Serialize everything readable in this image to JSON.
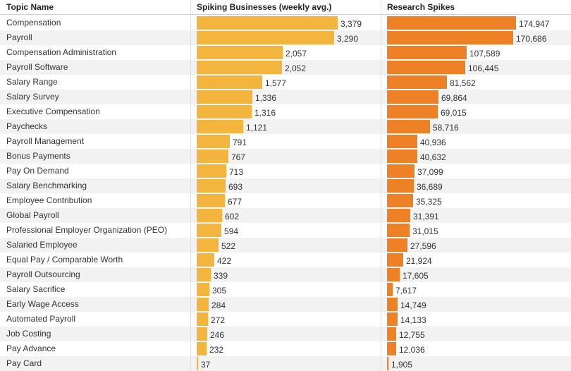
{
  "headers": {
    "topic": "Topic Name",
    "businesses": "Spiking Businesses (weekly avg.)",
    "research": "Research Spikes"
  },
  "colors": {
    "businesses_bar": "#f4b53f",
    "research_bar": "#ee8126",
    "row_alt": "#f2f2f2"
  },
  "chart_data": {
    "type": "table",
    "columns": [
      "Topic Name",
      "Spiking Businesses (weekly avg.)",
      "Research Spikes"
    ],
    "series": [
      {
        "name": "Spiking Businesses (weekly avg.)",
        "key": "businesses",
        "max": 3379
      },
      {
        "name": "Research Spikes",
        "key": "research",
        "max": 174947
      }
    ],
    "rows": [
      {
        "topic": "Compensation",
        "businesses": 3379,
        "businesses_label": "3,379",
        "research": 174947,
        "research_label": "174,947"
      },
      {
        "topic": "Payroll",
        "businesses": 3290,
        "businesses_label": "3,290",
        "research": 170686,
        "research_label": "170,686"
      },
      {
        "topic": "Compensation Administration",
        "businesses": 2057,
        "businesses_label": "2,057",
        "research": 107589,
        "research_label": "107,589"
      },
      {
        "topic": "Payroll Software",
        "businesses": 2052,
        "businesses_label": "2,052",
        "research": 106445,
        "research_label": "106,445"
      },
      {
        "topic": "Salary Range",
        "businesses": 1577,
        "businesses_label": "1,577",
        "research": 81562,
        "research_label": "81,562"
      },
      {
        "topic": "Salary Survey",
        "businesses": 1336,
        "businesses_label": "1,336",
        "research": 69864,
        "research_label": "69,864"
      },
      {
        "topic": "Executive Compensation",
        "businesses": 1316,
        "businesses_label": "1,316",
        "research": 69015,
        "research_label": "69,015"
      },
      {
        "topic": "Paychecks",
        "businesses": 1121,
        "businesses_label": "1,121",
        "research": 58716,
        "research_label": "58,716"
      },
      {
        "topic": "Payroll Management",
        "businesses": 791,
        "businesses_label": "791",
        "research": 40936,
        "research_label": "40,936"
      },
      {
        "topic": "Bonus Payments",
        "businesses": 767,
        "businesses_label": "767",
        "research": 40632,
        "research_label": "40,632"
      },
      {
        "topic": "Pay On Demand",
        "businesses": 713,
        "businesses_label": "713",
        "research": 37099,
        "research_label": "37,099"
      },
      {
        "topic": "Salary Benchmarking",
        "businesses": 693,
        "businesses_label": "693",
        "research": 36689,
        "research_label": "36,689"
      },
      {
        "topic": "Employee Contribution",
        "businesses": 677,
        "businesses_label": "677",
        "research": 35325,
        "research_label": "35,325"
      },
      {
        "topic": "Global Payroll",
        "businesses": 602,
        "businesses_label": "602",
        "research": 31391,
        "research_label": "31,391"
      },
      {
        "topic": "Professional Employer Organization (PEO)",
        "businesses": 594,
        "businesses_label": "594",
        "research": 31015,
        "research_label": "31,015"
      },
      {
        "topic": "Salaried Employee",
        "businesses": 522,
        "businesses_label": "522",
        "research": 27596,
        "research_label": "27,596"
      },
      {
        "topic": "Equal Pay / Comparable Worth",
        "businesses": 422,
        "businesses_label": "422",
        "research": 21924,
        "research_label": "21,924"
      },
      {
        "topic": "Payroll Outsourcing",
        "businesses": 339,
        "businesses_label": "339",
        "research": 17605,
        "research_label": "17,605"
      },
      {
        "topic": "Salary Sacrifice",
        "businesses": 305,
        "businesses_label": "305",
        "research": 7617,
        "research_label": "7,617"
      },
      {
        "topic": "Early Wage Access",
        "businesses": 284,
        "businesses_label": "284",
        "research": 14749,
        "research_label": "14,749"
      },
      {
        "topic": "Automated Payroll",
        "businesses": 272,
        "businesses_label": "272",
        "research": 14133,
        "research_label": "14,133"
      },
      {
        "topic": "Job Costing",
        "businesses": 246,
        "businesses_label": "246",
        "research": 12755,
        "research_label": "12,755"
      },
      {
        "topic": "Pay Advance",
        "businesses": 232,
        "businesses_label": "232",
        "research": 12036,
        "research_label": "12,036"
      },
      {
        "topic": "Pay Card",
        "businesses": 37,
        "businesses_label": "37",
        "research": 1905,
        "research_label": "1,905"
      }
    ]
  }
}
